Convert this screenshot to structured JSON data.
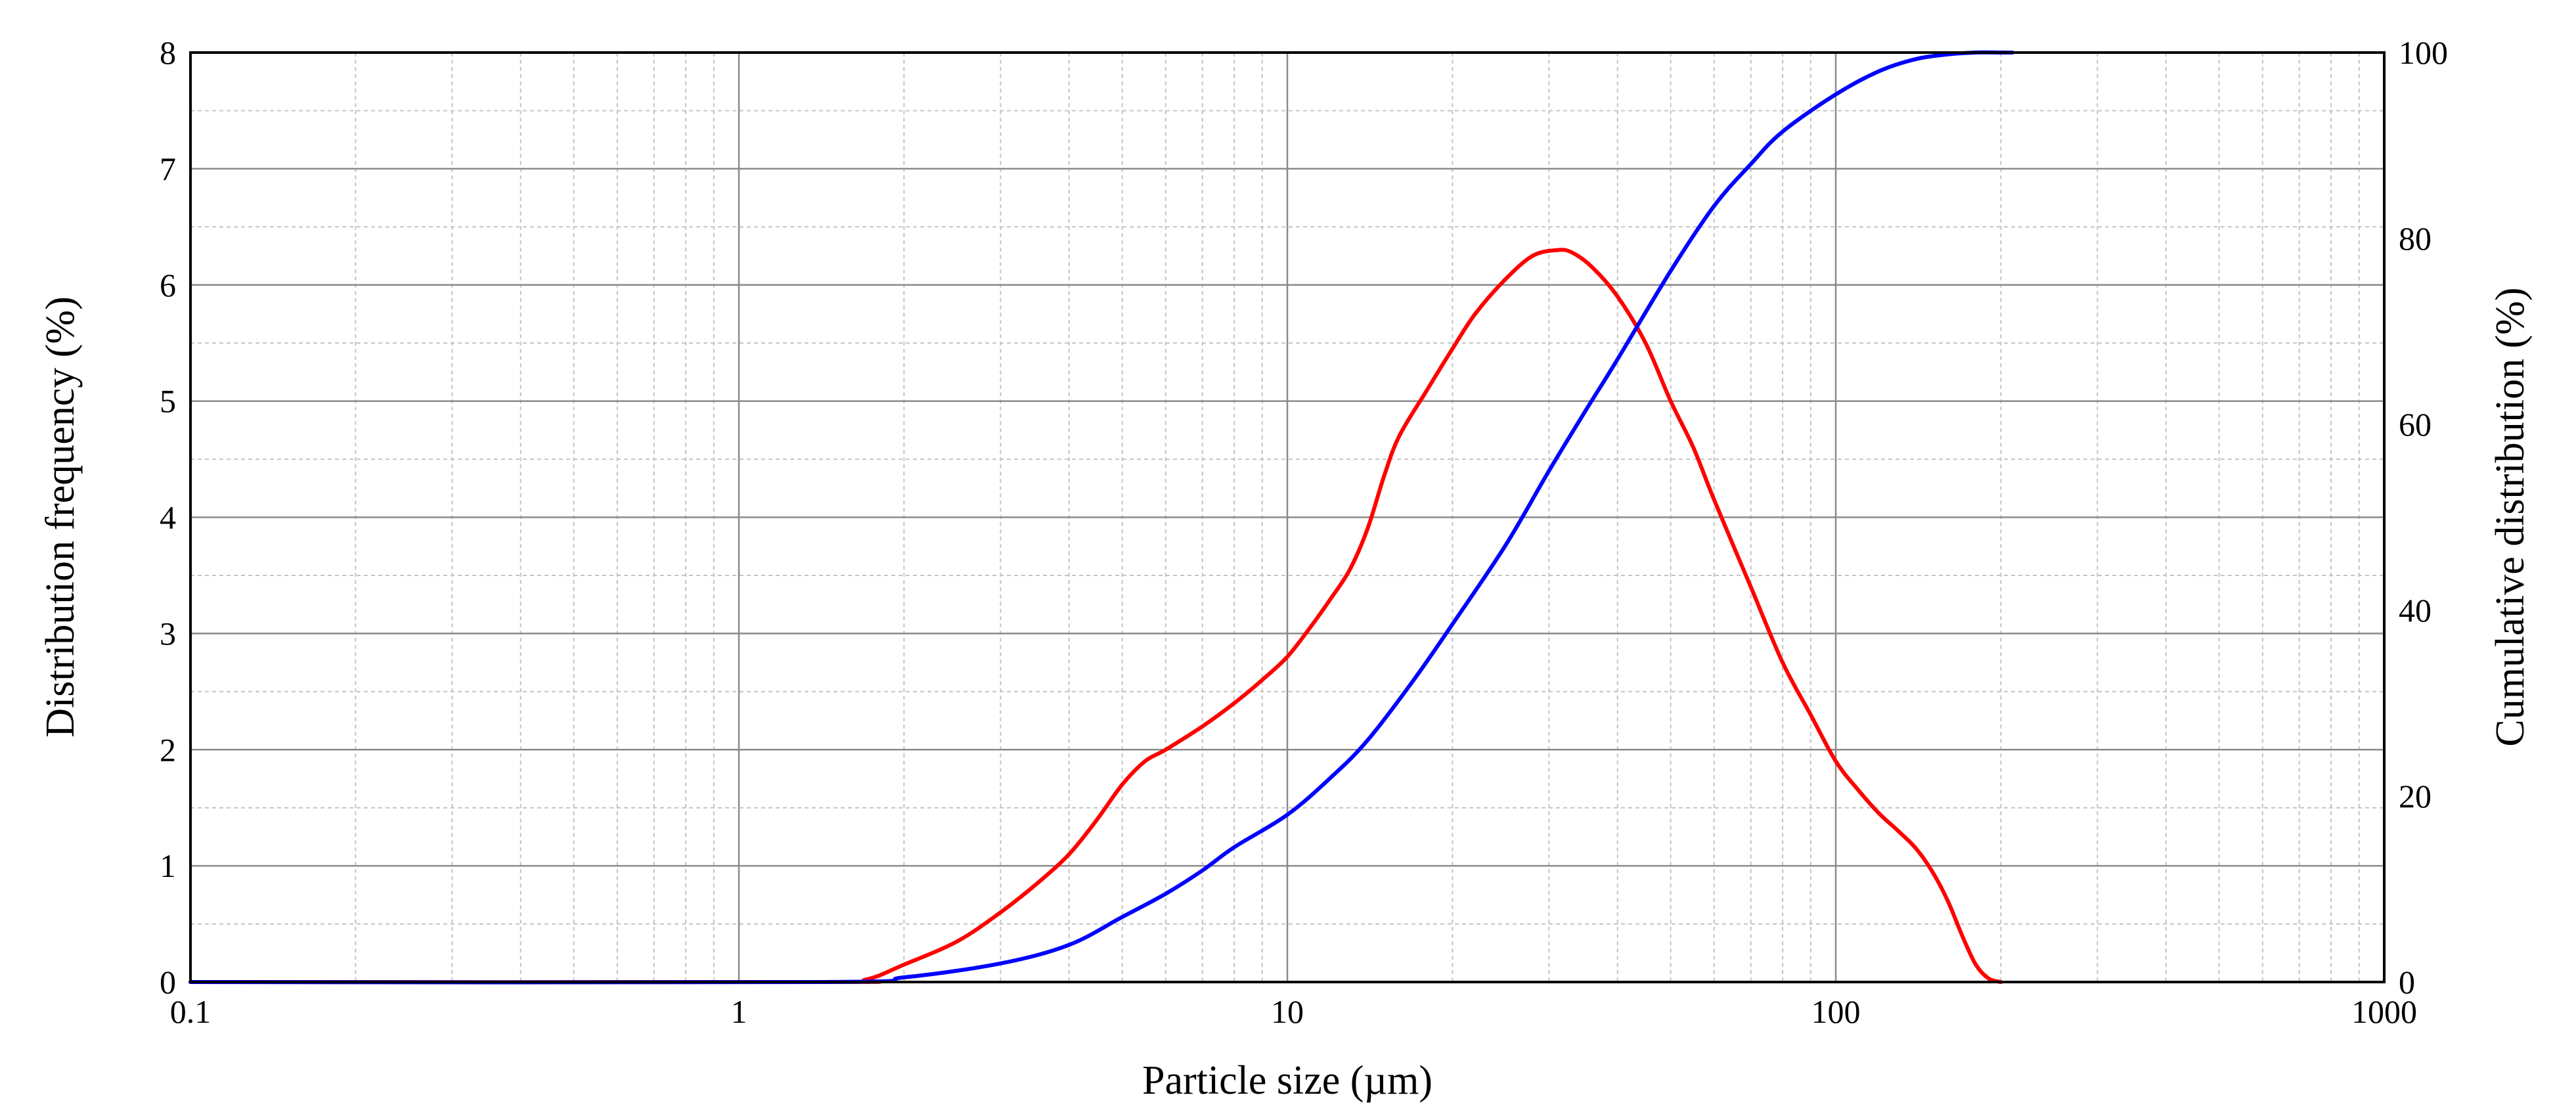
{
  "chart_data": {
    "type": "line",
    "title": "",
    "xlabel": "Particle size (µm)",
    "ylabel_left": "Distribution frequency (%)",
    "ylabel_right": "Cumulative distribution (%)",
    "x_scale": "log",
    "xlim": [
      0.1,
      1000
    ],
    "ylim_left": [
      0,
      8
    ],
    "ylim_right": [
      0,
      100
    ],
    "x_ticks": [
      "0.1",
      "1",
      "10",
      "100",
      "1000"
    ],
    "y_left_ticks": [
      "0",
      "1",
      "2",
      "3",
      "4",
      "5",
      "6",
      "7",
      "8"
    ],
    "y_right_ticks": [
      "0",
      "20",
      "40",
      "60",
      "80",
      "100"
    ],
    "grid": true,
    "series": [
      {
        "name": "Distribution frequency",
        "axis": "left",
        "color": "#ff0000",
        "x": [
          0.1,
          1.4,
          1.7,
          2.0,
          2.5,
          3.0,
          3.5,
          4.0,
          4.5,
          5.0,
          5.5,
          6.0,
          7.0,
          8.0,
          9.0,
          10,
          11,
          12,
          13,
          14,
          15,
          16,
          18,
          20,
          22,
          25,
          28,
          31,
          33,
          36,
          40,
          45,
          50,
          55,
          60,
          70,
          80,
          90,
          100,
          110,
          120,
          130,
          140,
          150,
          160,
          170,
          180,
          190,
          200
        ],
        "y": [
          0,
          0,
          0.02,
          0.15,
          0.35,
          0.6,
          0.85,
          1.1,
          1.4,
          1.7,
          1.9,
          2.0,
          2.2,
          2.4,
          2.6,
          2.8,
          3.05,
          3.3,
          3.55,
          3.9,
          4.35,
          4.7,
          5.1,
          5.45,
          5.75,
          6.05,
          6.25,
          6.3,
          6.28,
          6.15,
          5.9,
          5.5,
          5.0,
          4.6,
          4.15,
          3.4,
          2.75,
          2.3,
          1.9,
          1.65,
          1.45,
          1.3,
          1.15,
          0.95,
          0.7,
          0.4,
          0.15,
          0.03,
          0
        ]
      },
      {
        "name": "Cumulative distribution",
        "axis": "right",
        "color": "#0000ff",
        "x": [
          0.1,
          1.4,
          2.0,
          3.0,
          4.0,
          5.0,
          6.0,
          7.0,
          8.0,
          10,
          12,
          14,
          17,
          20,
          25,
          30,
          35,
          40,
          50,
          60,
          70,
          80,
          100,
          120,
          140,
          160,
          180,
          200,
          210
        ],
        "y": [
          0,
          0,
          0.5,
          2,
          4,
          7,
          9.5,
          12,
          14.5,
          18,
          22,
          26,
          32.5,
          38.5,
          47,
          55,
          61.5,
          67,
          76.5,
          83.5,
          88,
          91.5,
          95.5,
          98,
          99.3,
          99.8,
          100,
          100,
          100
        ]
      }
    ]
  }
}
